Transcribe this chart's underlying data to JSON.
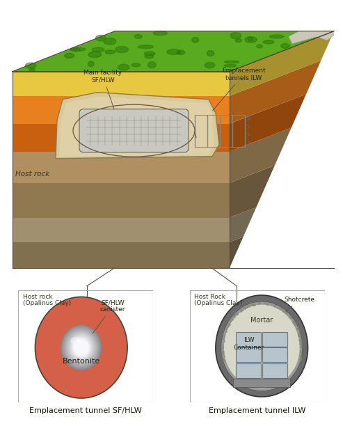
{
  "fig_w": 4.93,
  "fig_h": 6.22,
  "bg_color": "#ffffff",
  "panel_bg": "#e8d8a8",
  "left_panel": {
    "bg_color": "#e8d8a8",
    "title_line1": "Host rock",
    "title_line2": "(Opalinus Clay)",
    "bentonite_color": "#d4604a",
    "bentonite_label": "Bentonite",
    "canister_label": "SF/HLW\ncanister",
    "caption": "Emplacement tunnel SF/HLW"
  },
  "right_panel": {
    "bg_color": "#e8d8a8",
    "title_line1": "Host Rock",
    "title_line2": "(Opalinus Clay)",
    "shotcrete_label": "Shotcrete",
    "mortar_label": "Mortar",
    "container_label": "ILW\nContainer",
    "outer_color": "#6a6a6a",
    "inner_color": "#9a9a9a",
    "mortar_color": "#d8d8c8",
    "container_color": "#b8c4cc",
    "floor_color": "#8a8a8a",
    "caption": "Emplacement tunnel ILW"
  },
  "top_labels": {
    "host_rock": "Host rock",
    "main_facility": "Main facility\nSF/HLW",
    "emplacement_tunnels": "Emplacement\ntunnels ILW"
  },
  "layers": {
    "green": "#5aaa20",
    "yellow": "#e8c840",
    "orange_lt": "#e88020",
    "orange_dk": "#c86010",
    "tan_lt": "#c8a870",
    "tan_md": "#b09060",
    "tan_dk": "#907850",
    "gray_lt": "#c0b090",
    "gray_md": "#a09070",
    "gray_dk": "#807050"
  }
}
